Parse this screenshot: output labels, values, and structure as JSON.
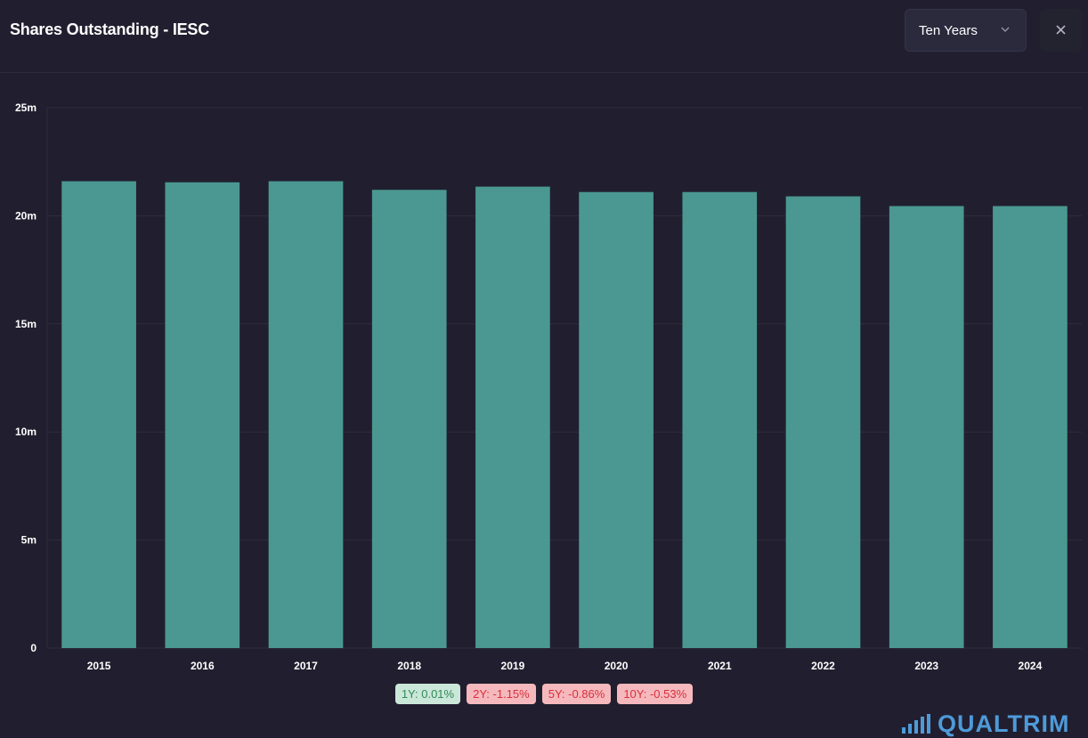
{
  "header": {
    "title": "Shares Outstanding - IESC",
    "period": "Ten Years",
    "close_symbol": "×"
  },
  "colors": {
    "background": "#211f2f",
    "bar": "#4a9891",
    "grid": "#2f2d3e",
    "positive_badge_bg": "#cbe7d9",
    "negative_badge_bg": "#f5b9bd",
    "brand": "#4e9ad9"
  },
  "chart_data": {
    "type": "bar",
    "categories": [
      "2015",
      "2016",
      "2017",
      "2018",
      "2019",
      "2020",
      "2021",
      "2022",
      "2023",
      "2024"
    ],
    "values": [
      21.6,
      21.55,
      21.6,
      21.2,
      21.35,
      21.1,
      21.1,
      20.9,
      20.45,
      20.45
    ],
    "unit": "m",
    "y_ticks": [
      "0",
      "5m",
      "10m",
      "15m",
      "20m",
      "25m"
    ],
    "ylim": [
      0,
      25
    ],
    "grid": true,
    "title": "",
    "xlabel": "",
    "ylabel": ""
  },
  "growth": [
    {
      "label": "1Y: 0.01%",
      "trend": "positive"
    },
    {
      "label": "2Y: -1.15%",
      "trend": "negative"
    },
    {
      "label": "5Y: -0.86%",
      "trend": "negative"
    },
    {
      "label": "10Y: -0.53%",
      "trend": "negative"
    }
  ],
  "brand": {
    "name": "QUALTRIM",
    "icon": "bar-chart-icon"
  }
}
